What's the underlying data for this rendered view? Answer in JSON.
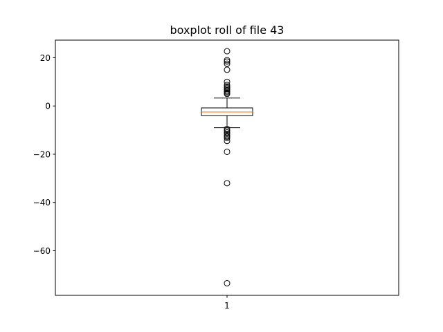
{
  "chart_data": {
    "type": "boxplot",
    "title": "boxplot roll of file 43",
    "xlabel": "",
    "ylabel": "",
    "categories": [
      "1"
    ],
    "ylim": [
      -78.5,
      27.3
    ],
    "yticks": [
      20,
      0,
      -20,
      -40,
      -60
    ],
    "ytick_labels": [
      "20",
      "0",
      "−20",
      "−40",
      "−60"
    ],
    "grid": false,
    "boxes": [
      {
        "label": "1",
        "whisker_low": -9.0,
        "q1": -4.0,
        "median": -2.5,
        "q3": -0.8,
        "whisker_high": 3.3,
        "fliers": [
          22.7,
          19.0,
          18.4,
          17.5,
          15.0,
          10.0,
          8.7,
          8.1,
          7.5,
          7.0,
          6.5,
          6.0,
          5.5,
          5.0,
          -9.5,
          -10.2,
          -10.9,
          -11.5,
          -12.1,
          -12.7,
          -13.3,
          -14.5,
          -19.0,
          -32.0,
          -73.5
        ]
      }
    ],
    "colors": {
      "box": "#000000",
      "median": "#ff7f0e",
      "flier": "#000000"
    }
  }
}
